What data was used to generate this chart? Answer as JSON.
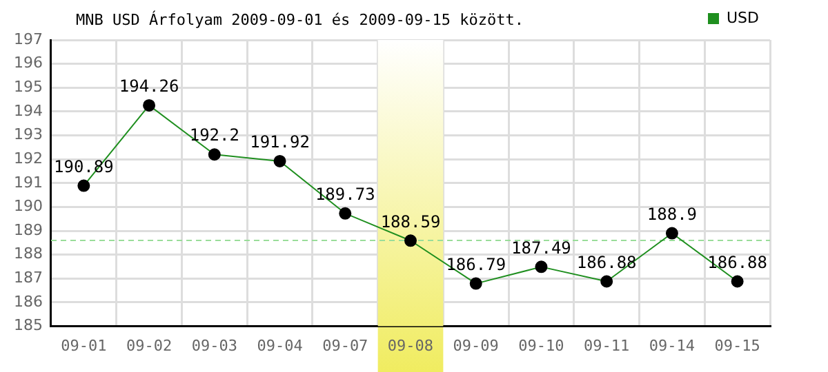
{
  "chart_data": {
    "type": "line",
    "title": "MNB USD Árfolyam 2009-09-01 és 2009-09-15 között.",
    "categories": [
      "09-01",
      "09-02",
      "09-03",
      "09-04",
      "09-07",
      "09-08",
      "09-09",
      "09-10",
      "09-11",
      "09-14",
      "09-15"
    ],
    "series": [
      {
        "name": "USD",
        "color": "#1f8f1f",
        "values": [
          190.89,
          194.26,
          192.2,
          191.92,
          189.73,
          188.59,
          186.79,
          187.49,
          186.88,
          188.9,
          186.88
        ]
      }
    ],
    "ylim": [
      185,
      197
    ],
    "yticks": [
      185,
      186,
      187,
      188,
      189,
      190,
      191,
      192,
      193,
      194,
      195,
      196,
      197
    ],
    "grid": true,
    "legend": "top right",
    "marker": "circle",
    "line_style": "solid",
    "data_labels": true,
    "ref_lines": [
      {
        "axis": "y",
        "value": 188.6,
        "color": "#99dd99",
        "line_style": "dashed"
      }
    ],
    "bands": [
      {
        "axis": "x",
        "from": "09-08",
        "to": "09-08",
        "color": "#f0ec60"
      }
    ]
  }
}
